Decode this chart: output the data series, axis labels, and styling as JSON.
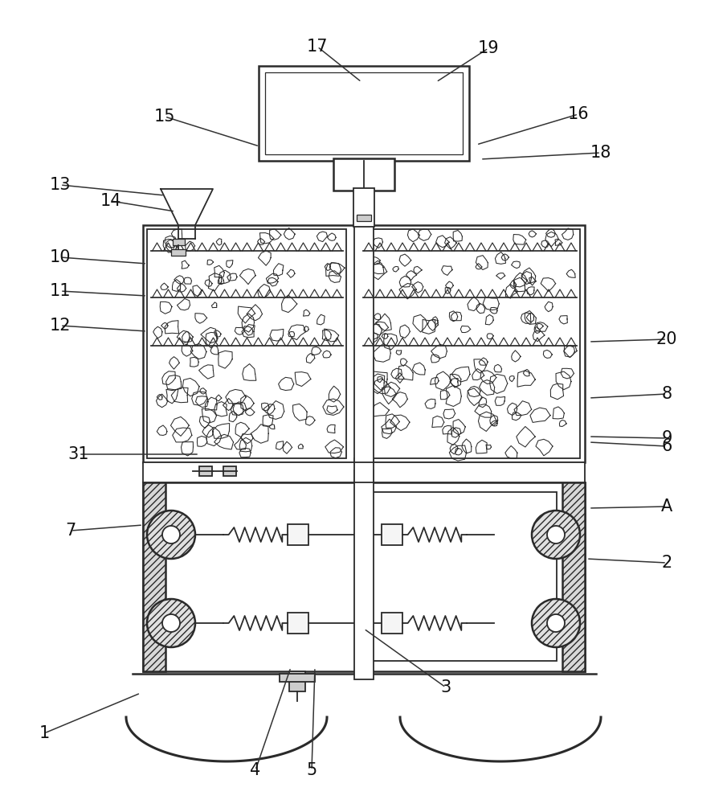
{
  "bg_color": "#ffffff",
  "line_color": "#2a2a2a",
  "lw_main": 1.8,
  "lw_med": 1.3,
  "lw_thin": 0.9,
  "label_fontsize": 15,
  "annotations": [
    [
      "1",
      55,
      88,
      175,
      138
    ],
    [
      "2",
      830,
      300,
      730,
      305
    ],
    [
      "3",
      555,
      145,
      453,
      218
    ],
    [
      "4",
      318,
      42,
      362,
      170
    ],
    [
      "5",
      388,
      42,
      392,
      170
    ],
    [
      "6",
      830,
      445,
      733,
      450
    ],
    [
      "7",
      88,
      340,
      178,
      347
    ],
    [
      "8",
      830,
      510,
      733,
      505
    ],
    [
      "9",
      830,
      455,
      733,
      457
    ],
    [
      "10",
      75,
      680,
      183,
      672
    ],
    [
      "11",
      75,
      638,
      183,
      632
    ],
    [
      "12",
      75,
      595,
      183,
      588
    ],
    [
      "13",
      75,
      770,
      205,
      757
    ],
    [
      "14",
      138,
      750,
      218,
      737
    ],
    [
      "15",
      205,
      855,
      323,
      818
    ],
    [
      "16",
      720,
      858,
      593,
      820
    ],
    [
      "17",
      395,
      942,
      450,
      898
    ],
    [
      "18",
      748,
      810,
      598,
      802
    ],
    [
      "19",
      608,
      940,
      543,
      898
    ],
    [
      "20",
      830,
      578,
      733,
      575
    ],
    [
      "31",
      98,
      435,
      248,
      435
    ],
    [
      "A",
      830,
      370,
      733,
      368
    ]
  ]
}
